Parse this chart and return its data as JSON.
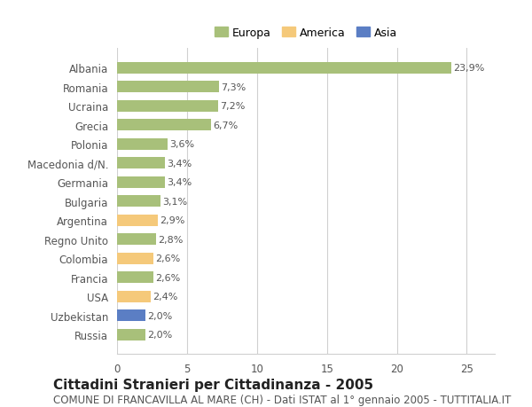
{
  "categories": [
    "Albania",
    "Romania",
    "Ucraina",
    "Grecia",
    "Polonia",
    "Macedonia d/N.",
    "Germania",
    "Bulgaria",
    "Argentina",
    "Regno Unito",
    "Colombia",
    "Francia",
    "USA",
    "Uzbekistan",
    "Russia"
  ],
  "values": [
    23.9,
    7.3,
    7.2,
    6.7,
    3.6,
    3.4,
    3.4,
    3.1,
    2.9,
    2.8,
    2.6,
    2.6,
    2.4,
    2.0,
    2.0
  ],
  "labels": [
    "23,9%",
    "7,3%",
    "7,2%",
    "6,7%",
    "3,6%",
    "3,4%",
    "3,4%",
    "3,1%",
    "2,9%",
    "2,8%",
    "2,6%",
    "2,6%",
    "2,4%",
    "2,0%",
    "2,0%"
  ],
  "colors": [
    "#a8c07a",
    "#a8c07a",
    "#a8c07a",
    "#a8c07a",
    "#a8c07a",
    "#a8c07a",
    "#a8c07a",
    "#a8c07a",
    "#f5c97a",
    "#a8c07a",
    "#f5c97a",
    "#a8c07a",
    "#f5c97a",
    "#5b7ec4",
    "#a8c07a"
  ],
  "legend_labels": [
    "Europa",
    "America",
    "Asia"
  ],
  "legend_colors": [
    "#a8c07a",
    "#f5c97a",
    "#5b7ec4"
  ],
  "title": "Cittadini Stranieri per Cittadinanza - 2005",
  "subtitle": "COMUNE DI FRANCAVILLA AL MARE (CH) - Dati ISTAT al 1° gennaio 2005 - TUTTITALIA.IT",
  "xlim": [
    0,
    27
  ],
  "xticks": [
    0,
    5,
    10,
    15,
    20,
    25
  ],
  "background_color": "#ffffff",
  "grid_color": "#d0d0d0",
  "bar_height": 0.6,
  "title_fontsize": 11,
  "subtitle_fontsize": 8.5,
  "label_fontsize": 8,
  "tick_fontsize": 8.5
}
